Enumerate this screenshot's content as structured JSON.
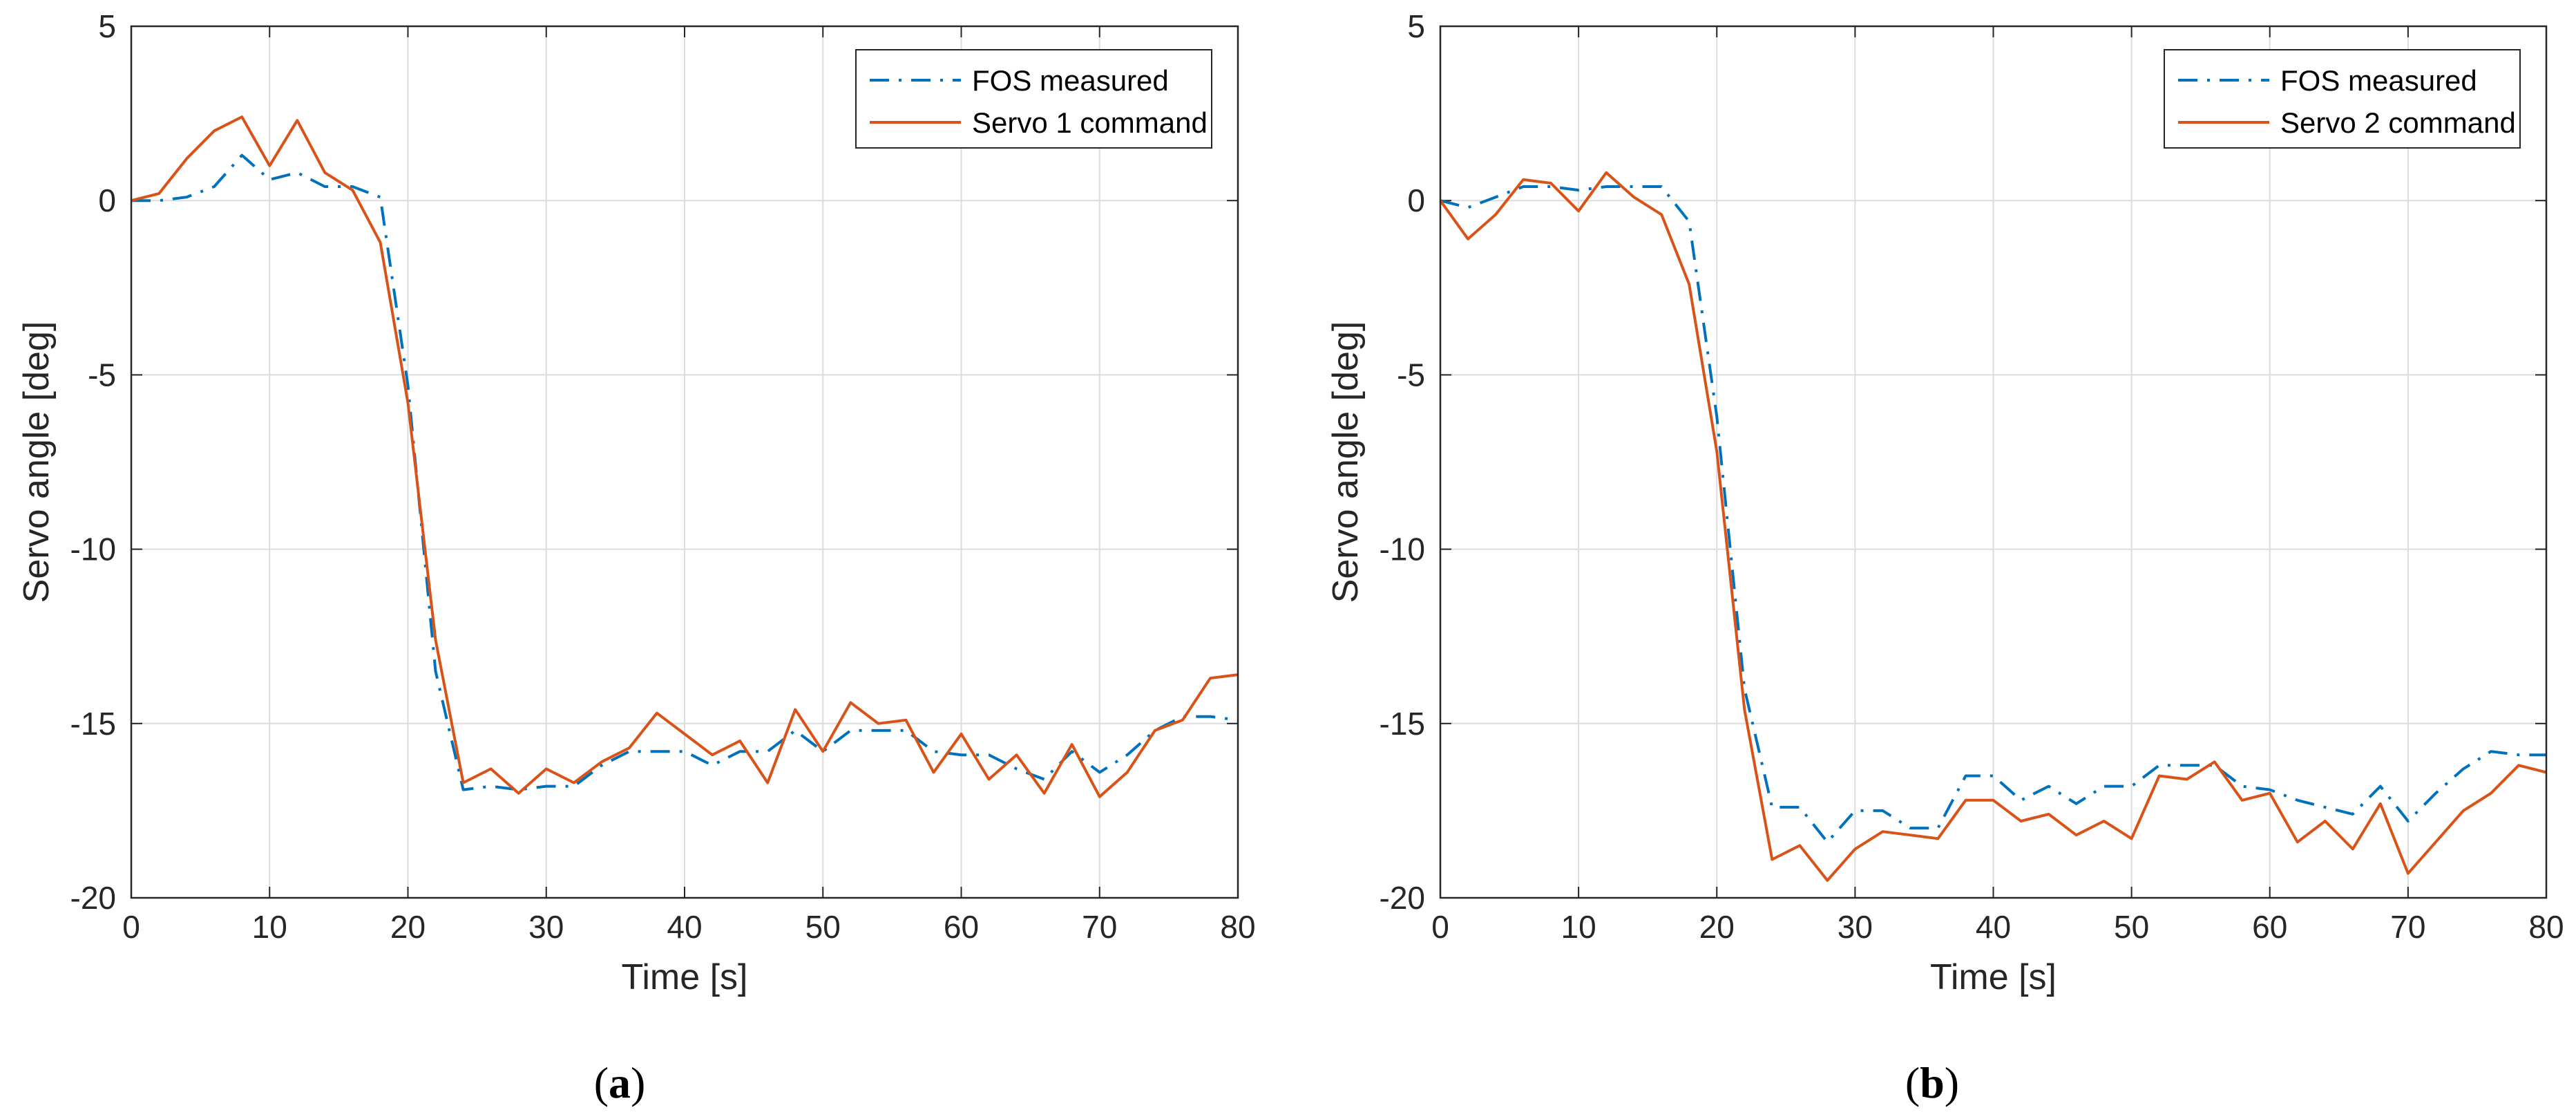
{
  "chart_data": [
    {
      "type": "line",
      "panel": "a",
      "caption_open": "(",
      "caption_letter": "a",
      "caption_close": ")",
      "xlabel": "Time [s]",
      "ylabel": "Servo angle [deg]",
      "xlim": [
        0,
        80
      ],
      "ylim": [
        -20,
        5
      ],
      "xticks": [
        0,
        10,
        20,
        30,
        40,
        50,
        60,
        70,
        80
      ],
      "yticks": [
        -20,
        -15,
        -10,
        -5,
        0,
        5
      ],
      "grid": true,
      "legend_position": "top-right",
      "series": [
        {
          "name": "FOS measured",
          "style": "dashdot",
          "color": "#0072BD",
          "x": [
            0,
            2,
            4,
            6,
            8,
            10,
            12,
            14,
            16,
            18,
            20,
            22,
            24,
            26,
            28,
            30,
            32,
            34,
            36,
            38,
            40,
            42,
            44,
            46,
            48,
            50,
            52,
            54,
            56,
            58,
            60,
            62,
            64,
            66,
            68,
            70,
            72,
            74,
            76,
            78,
            80
          ],
          "y": [
            0,
            0,
            0.1,
            0.4,
            1.3,
            0.6,
            0.8,
            0.4,
            0.4,
            0.1,
            -5.3,
            -13.5,
            -16.9,
            -16.8,
            -16.9,
            -16.8,
            -16.8,
            -16.2,
            -15.8,
            -15.8,
            -15.8,
            -16.2,
            -15.8,
            -15.8,
            -15.2,
            -15.8,
            -15.2,
            -15.2,
            -15.2,
            -15.8,
            -15.9,
            -15.9,
            -16.3,
            -16.6,
            -15.8,
            -16.4,
            -15.9,
            -15.2,
            -14.8,
            -14.8,
            -14.9
          ]
        },
        {
          "name": "Servo 1 command",
          "style": "solid",
          "color": "#D95319",
          "x": [
            0,
            2,
            4,
            6,
            8,
            10,
            12,
            14,
            16,
            18,
            20,
            22,
            24,
            26,
            28,
            30,
            32,
            34,
            36,
            38,
            40,
            42,
            44,
            46,
            48,
            50,
            52,
            54,
            56,
            58,
            60,
            62,
            64,
            66,
            68,
            70,
            72,
            74,
            76,
            78,
            80
          ],
          "y": [
            0,
            0.2,
            1.2,
            2.0,
            2.4,
            1.0,
            2.3,
            0.8,
            0.3,
            -1.2,
            -5.8,
            -12.6,
            -16.7,
            -16.3,
            -17.0,
            -16.3,
            -16.7,
            -16.1,
            -15.7,
            -14.7,
            -15.3,
            -15.9,
            -15.5,
            -16.7,
            -14.6,
            -15.8,
            -14.4,
            -15.0,
            -14.9,
            -16.4,
            -15.3,
            -16.6,
            -15.9,
            -17.0,
            -15.6,
            -17.1,
            -16.4,
            -15.2,
            -14.9,
            -13.7,
            -13.6
          ]
        }
      ]
    },
    {
      "type": "line",
      "panel": "b",
      "caption_open": "(",
      "caption_letter": "b",
      "caption_close": ")",
      "xlabel": "Time [s]",
      "ylabel": "Servo angle [deg]",
      "xlim": [
        0,
        80
      ],
      "ylim": [
        -20,
        5
      ],
      "xticks": [
        0,
        10,
        20,
        30,
        40,
        50,
        60,
        70,
        80
      ],
      "yticks": [
        -20,
        -15,
        -10,
        -5,
        0,
        5
      ],
      "grid": true,
      "legend_position": "top-right",
      "series": [
        {
          "name": "FOS measured",
          "style": "dashdot",
          "color": "#0072BD",
          "x": [
            0,
            2,
            4,
            6,
            8,
            10,
            12,
            14,
            16,
            18,
            20,
            22,
            24,
            26,
            28,
            30,
            32,
            34,
            36,
            38,
            40,
            42,
            44,
            46,
            48,
            50,
            52,
            54,
            56,
            58,
            60,
            62,
            64,
            66,
            68,
            70,
            72,
            74,
            76,
            78,
            80
          ],
          "y": [
            0,
            -0.2,
            0.1,
            0.4,
            0.4,
            0.3,
            0.4,
            0.4,
            0.4,
            -0.6,
            -6.2,
            -14.0,
            -17.4,
            -17.4,
            -18.4,
            -17.5,
            -17.5,
            -18.0,
            -18.0,
            -16.5,
            -16.5,
            -17.2,
            -16.8,
            -17.3,
            -16.8,
            -16.8,
            -16.2,
            -16.2,
            -16.2,
            -16.8,
            -16.9,
            -17.2,
            -17.4,
            -17.6,
            -16.8,
            -17.8,
            -17.0,
            -16.3,
            -15.8,
            -15.9,
            -15.9
          ]
        },
        {
          "name": "Servo 2 command",
          "style": "solid",
          "color": "#D95319",
          "x": [
            0,
            2,
            4,
            6,
            8,
            10,
            12,
            14,
            16,
            18,
            20,
            22,
            24,
            26,
            28,
            30,
            32,
            34,
            36,
            38,
            40,
            42,
            44,
            46,
            48,
            50,
            52,
            54,
            56,
            58,
            60,
            62,
            64,
            66,
            68,
            70,
            72,
            74,
            76,
            78,
            80
          ],
          "y": [
            0,
            -1.1,
            -0.4,
            0.6,
            0.5,
            -0.3,
            0.8,
            0.1,
            -0.4,
            -2.4,
            -7.2,
            -14.6,
            -18.9,
            -18.5,
            -19.5,
            -18.6,
            -18.1,
            -18.2,
            -18.3,
            -17.2,
            -17.2,
            -17.8,
            -17.6,
            -18.2,
            -17.8,
            -18.3,
            -16.5,
            -16.6,
            -16.1,
            -17.2,
            -17.0,
            -18.4,
            -17.8,
            -18.6,
            -17.3,
            -19.3,
            -18.4,
            -17.5,
            -17.0,
            -16.2,
            -16.4
          ]
        }
      ]
    }
  ]
}
